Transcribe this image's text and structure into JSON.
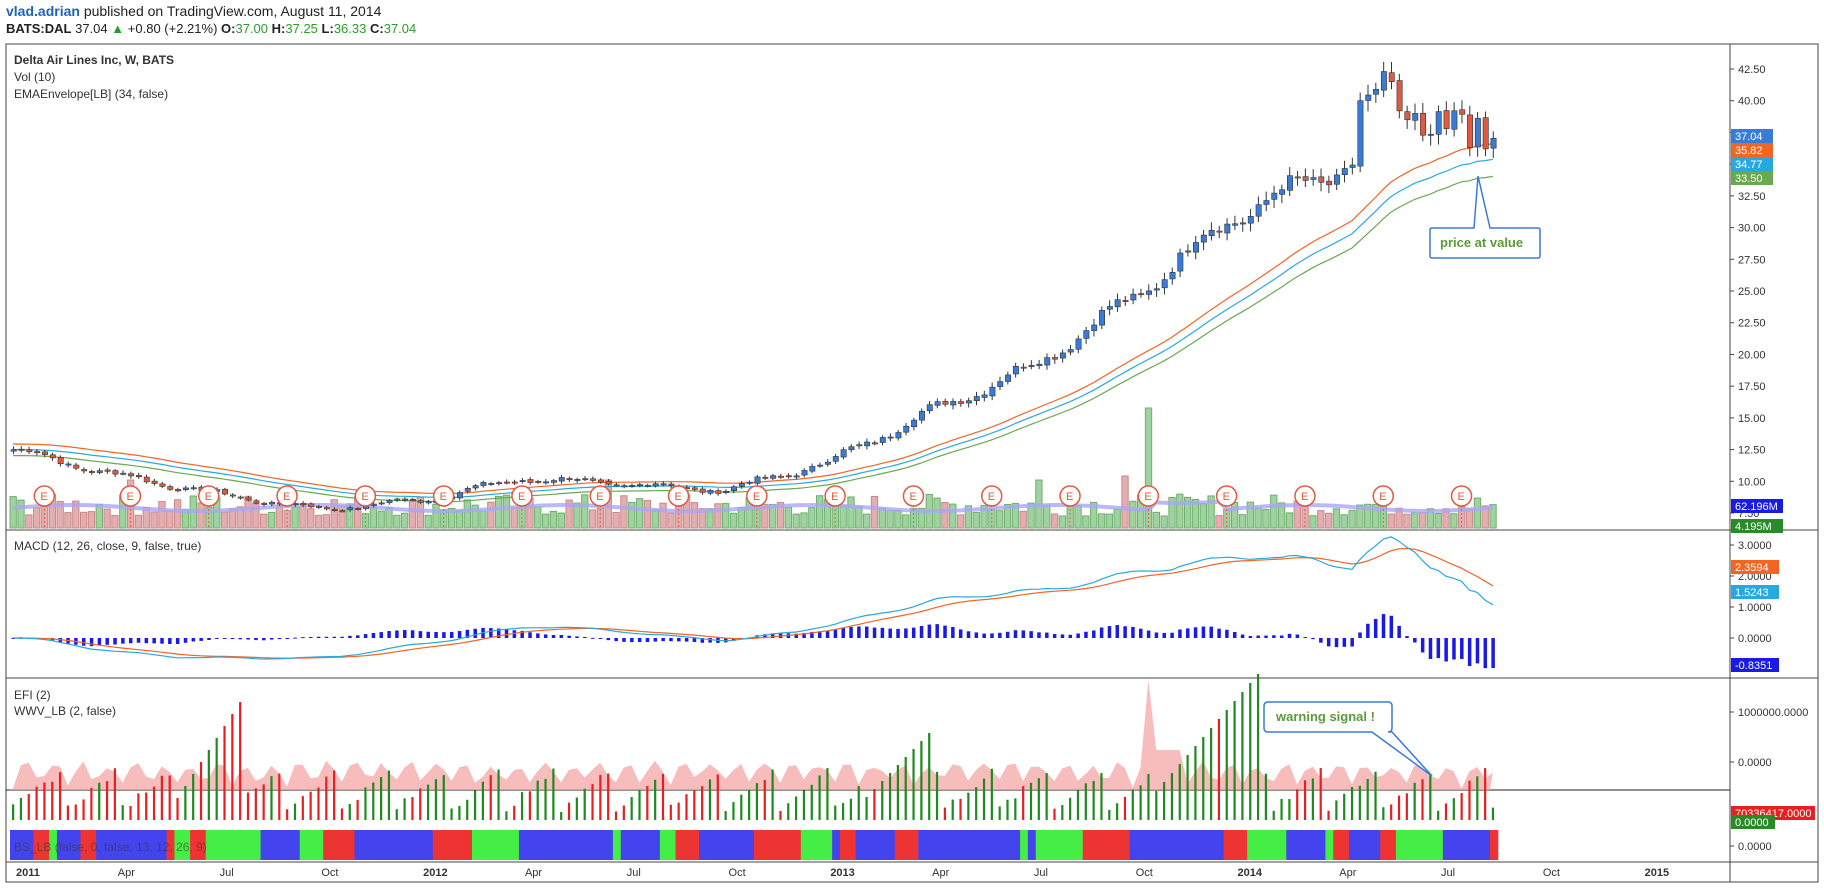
{
  "header": {
    "user": "vlad.adrian",
    "published": "published on TradingView.com, August 11, 2014",
    "symbol": "BATS:DAL",
    "last": "37.04",
    "change": "+0.80 (+2.21%)",
    "o_label": "O:",
    "o": "37.00",
    "h_label": "H:",
    "h": "37.25",
    "l_label": "L:",
    "l": "36.33",
    "c_label": "C:",
    "c": "37.04"
  },
  "main_pane": {
    "legend": [
      "Delta Air Lines Inc, W, BATS",
      "Vol (10)",
      "EMAEnvelope[LB] (34, false)"
    ],
    "axis_ticks": [
      "42.50",
      "40.00",
      "37.50",
      "35.00",
      "32.50",
      "30.00",
      "27.50",
      "25.00",
      "22.50",
      "20.00",
      "17.50",
      "15.00",
      "12.50",
      "10.00",
      "7.50"
    ],
    "price_tags": [
      {
        "value": "37.04",
        "color": "#3a7bd5"
      },
      {
        "value": "35.82",
        "color": "#f26522"
      },
      {
        "value": "34.77",
        "color": "#29a8e0"
      },
      {
        "value": "33.50",
        "color": "#6aa84f"
      }
    ],
    "volume_tags": [
      {
        "value": "62.196M",
        "color": "#1a1ae6"
      },
      {
        "value": "4.195M",
        "color": "#2a8a2a"
      }
    ],
    "annotation": "price at value",
    "earnings_marker": "E"
  },
  "macd_pane": {
    "legend": "MACD (12, 26, close, 9, false, true)",
    "axis_ticks": [
      "3.0000",
      "2.0000",
      "1.0000",
      "0.0000"
    ],
    "tags": [
      {
        "value": "2.3594",
        "color": "#f26522"
      },
      {
        "value": "1.5243",
        "color": "#29a8e0"
      },
      {
        "value": "-0.8351",
        "color": "#1a1ae6"
      }
    ]
  },
  "efi_pane": {
    "legend": [
      "EFI (2)",
      "WWV_LB (2, false)"
    ],
    "hidden_legend": "BS_LB (false, 0, false, 13, 12, 26, 9)",
    "axis_ticks": [
      "1000000.0000",
      "0.0000",
      "0.0000"
    ],
    "tags": [
      {
        "value": "70336417.0000",
        "color": "#e62020"
      },
      {
        "value": "0.0000",
        "color": "#2a8a2a"
      }
    ],
    "annotation": "warning signal !"
  },
  "time_axis": [
    "2011",
    "Apr",
    "Jul",
    "Oct",
    "2012",
    "Apr",
    "Jul",
    "Oct",
    "2013",
    "Apr",
    "Jul",
    "Oct",
    "2014",
    "Apr",
    "Jul",
    "Oct",
    "2015"
  ],
  "chart_data": {
    "type": "candlestick",
    "title": "Delta Air Lines Inc, W, BATS",
    "timeframe": "W",
    "x_range": [
      "2011",
      "2015"
    ],
    "ylim": [
      7.5,
      42.5
    ],
    "series": [
      {
        "name": "Delta Air Lines Inc",
        "type": "candlestick",
        "approx_path": [
          [
            "2011",
            12.5
          ],
          [
            "Apr",
            10.5
          ],
          [
            "Jul",
            9.0
          ],
          [
            "Oct",
            7.8
          ],
          [
            "2012",
            8.5
          ],
          [
            "Apr",
            10.2
          ],
          [
            "Jul",
            9.8
          ],
          [
            "Oct",
            9.3
          ],
          [
            "2013",
            11.5
          ],
          [
            "Apr",
            15.5
          ],
          [
            "Jul",
            19.0
          ],
          [
            "Oct",
            24.5
          ],
          [
            "2014",
            31.0
          ],
          [
            "Apr",
            34.5
          ],
          [
            "Jul",
            39.0
          ],
          [
            "Aug",
            37.04
          ]
        ]
      },
      {
        "name": "EMAEnvelope[LB] (34, false)",
        "last": [
          35.82,
          34.77,
          33.5
        ]
      }
    ],
    "last_close": 37.04,
    "volume_last": "62.196M",
    "macd_last": {
      "macd": 1.5243,
      "signal": 2.3594,
      "hist": -0.8351
    }
  }
}
